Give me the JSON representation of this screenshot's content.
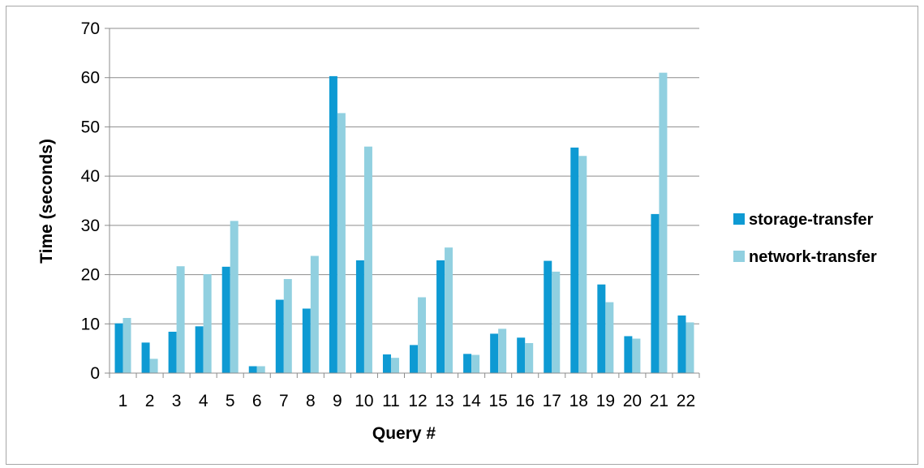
{
  "chart_data": {
    "type": "bar",
    "title": "",
    "xlabel": "Query #",
    "ylabel": "Time (seconds)",
    "ylim": [
      0,
      70
    ],
    "yticks": [
      "0",
      "10",
      "20",
      "30",
      "40",
      "50",
      "60",
      "70"
    ],
    "grid": "horizontal",
    "legend_position": "right",
    "categories": [
      "1",
      "2",
      "3",
      "4",
      "5",
      "6",
      "7",
      "8",
      "9",
      "10",
      "11",
      "12",
      "13",
      "14",
      "15",
      "16",
      "17",
      "18",
      "19",
      "20",
      "21",
      "22"
    ],
    "series": [
      {
        "name": "storage-transfer",
        "color": "#0e9ad3",
        "values": [
          10.1,
          6.2,
          8.4,
          9.5,
          21.6,
          1.4,
          14.9,
          13.1,
          60.3,
          22.9,
          3.8,
          5.7,
          22.9,
          3.9,
          8.0,
          7.2,
          22.8,
          45.8,
          18.0,
          7.5,
          32.3,
          11.7
        ]
      },
      {
        "name": "network-transfer",
        "color": "#91d0e0",
        "values": [
          11.2,
          2.9,
          21.7,
          20.1,
          30.9,
          1.4,
          19.1,
          23.8,
          52.8,
          46.0,
          3.1,
          15.4,
          25.5,
          3.7,
          9.0,
          6.1,
          20.6,
          44.1,
          14.4,
          7.0,
          61.0,
          10.3
        ]
      }
    ]
  }
}
